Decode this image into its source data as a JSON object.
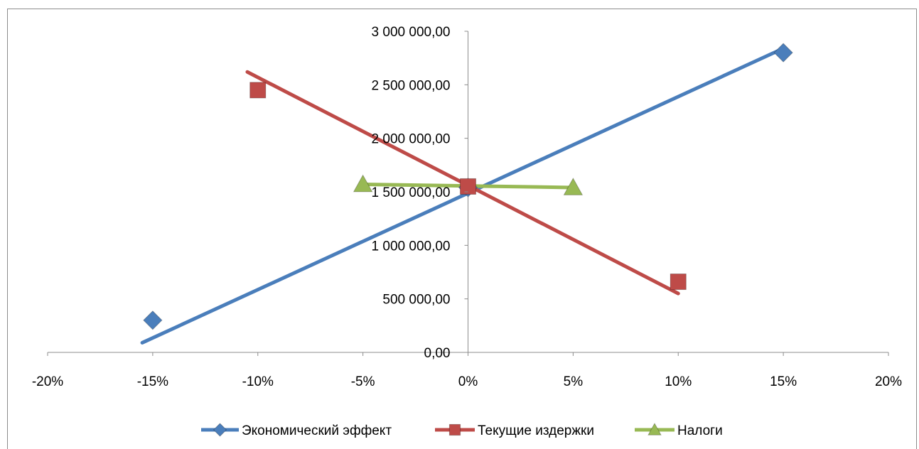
{
  "chart_data": {
    "type": "scatter",
    "title": "",
    "xlabel": "",
    "ylabel": "",
    "xlim": [
      -0.2,
      0.2
    ],
    "ylim": [
      0,
      3000000
    ],
    "x_ticks": [
      -0.2,
      -0.15,
      -0.1,
      -0.05,
      0,
      0.05,
      0.1,
      0.15,
      0.2
    ],
    "x_tick_labels": [
      "-20%",
      "-15%",
      "-10%",
      "-5%",
      "0%",
      "5%",
      "10%",
      "15%",
      "20%"
    ],
    "y_ticks": [
      0,
      500000,
      1000000,
      1500000,
      2000000,
      2500000,
      3000000
    ],
    "y_tick_labels": [
      "0,00",
      "500 000,00",
      "1 000 000,00",
      "1 500 000,00",
      "2 000 000,00",
      "2 500 000,00",
      "3 000 000,00"
    ],
    "grid": false,
    "legend_position": "bottom",
    "series": [
      {
        "name": "Экономический эффект",
        "color": "#4a7ebb",
        "marker": "diamond",
        "points": [
          [
            -0.15,
            300000
          ],
          [
            0,
            1540000
          ],
          [
            0.15,
            2800000
          ]
        ],
        "trendline": [
          [
            -0.155,
            90000
          ],
          [
            0.15,
            2840000
          ]
        ]
      },
      {
        "name": "Текущие издержки",
        "color": "#be4b48",
        "marker": "square",
        "points": [
          [
            -0.1,
            2450000
          ],
          [
            0,
            1550000
          ],
          [
            0.1,
            660000
          ]
        ],
        "trendline": [
          [
            -0.105,
            2620000
          ],
          [
            0.1,
            550000
          ]
        ]
      },
      {
        "name": "Налоги",
        "color": "#98b954",
        "marker": "triangle",
        "points": [
          [
            -0.05,
            1570000
          ],
          [
            0.05,
            1540000
          ]
        ],
        "trendline": [
          [
            -0.05,
            1570000
          ],
          [
            0.05,
            1540000
          ]
        ]
      }
    ]
  }
}
